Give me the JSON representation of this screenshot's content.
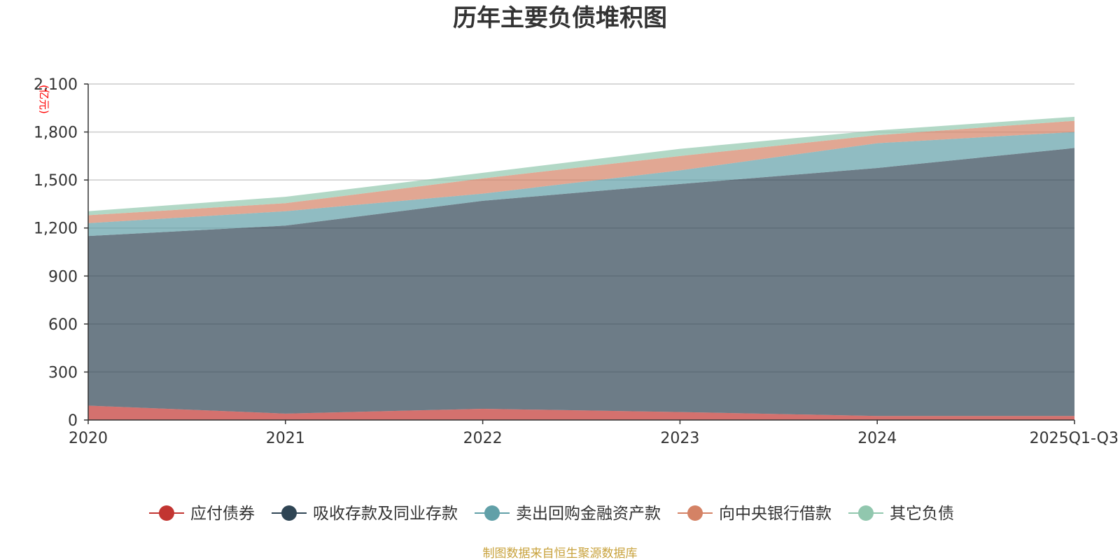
{
  "chart_data": {
    "type": "area",
    "stacked": true,
    "title": "历年主要负债堆积图",
    "y_unit": "(亿元)",
    "categories": [
      "2020",
      "2021",
      "2022",
      "2023",
      "2024",
      "2025Q1-Q3"
    ],
    "ylim": [
      0,
      2100
    ],
    "y_ticks": [
      "0",
      "300",
      "600",
      "900",
      "1,200",
      "1,500",
      "1,800",
      "2,100"
    ],
    "y_tick_values": [
      0,
      300,
      600,
      900,
      1200,
      1500,
      1800,
      2100
    ],
    "grid": true,
    "legend_position": "bottom",
    "series": [
      {
        "name": "应付债券",
        "color": "#c23531",
        "values": [
          90,
          40,
          70,
          50,
          25,
          25
        ]
      },
      {
        "name": "吸收存款及同业存款",
        "color": "#2f4554",
        "values": [
          1060,
          1175,
          1300,
          1425,
          1550,
          1675
        ]
      },
      {
        "name": "卖出回购金融资产款",
        "color": "#61a0a8",
        "values": [
          80,
          90,
          45,
          85,
          155,
          100
        ]
      },
      {
        "name": "向中央银行借款",
        "color": "#d48265",
        "values": [
          50,
          50,
          95,
          90,
          50,
          70
        ]
      },
      {
        "name": "其它负债",
        "color": "#91c7ae",
        "values": [
          25,
          40,
          35,
          45,
          30,
          25
        ]
      }
    ],
    "source": "制图数据来自恒生聚源数据库"
  }
}
